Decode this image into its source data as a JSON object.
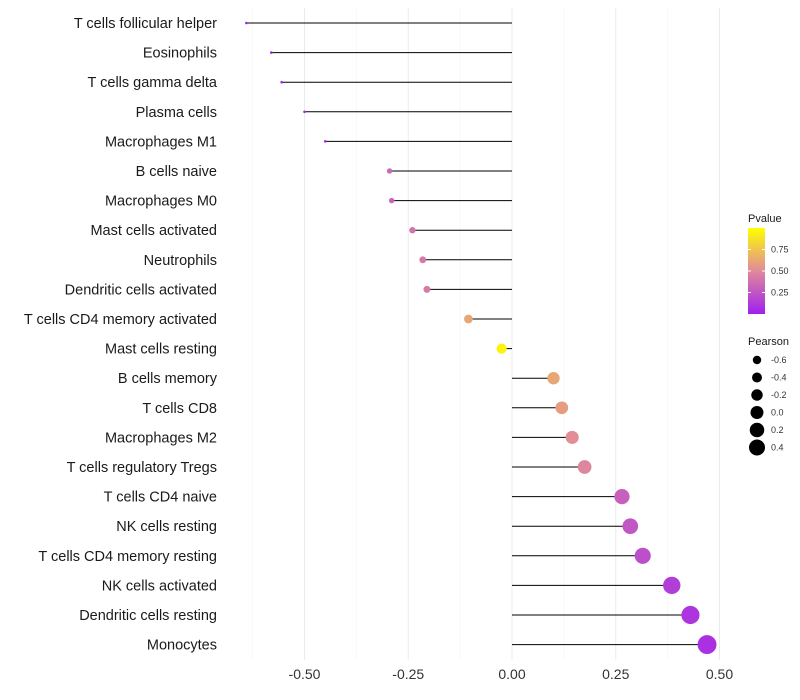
{
  "chart_data": {
    "type": "lollipop",
    "categories": [
      "T cells follicular helper",
      "Eosinophils",
      "T cells gamma delta",
      "Plasma cells",
      "Macrophages M1",
      "B cells naive",
      "Macrophages M0",
      "Mast cells activated",
      "Neutrophils",
      "Dendritic cells activated",
      "T cells CD4 memory activated",
      "Mast cells resting",
      "B cells memory",
      "T cells CD8",
      "Macrophages M2",
      "T cells regulatory  Tregs ",
      "T cells CD4 naive",
      "NK cells resting",
      "T cells CD4 memory resting",
      "NK cells activated",
      "Dendritic cells resting",
      "Monocytes"
    ],
    "values": [
      -0.64,
      -0.58,
      -0.555,
      -0.5,
      -0.45,
      -0.295,
      -0.29,
      -0.24,
      -0.215,
      -0.205,
      -0.105,
      -0.025,
      0.1,
      0.12,
      0.145,
      0.175,
      0.265,
      0.285,
      0.315,
      0.385,
      0.43,
      0.47
    ],
    "pvalues": [
      0.01,
      0.02,
      0.03,
      0.04,
      0.06,
      0.35,
      0.32,
      0.4,
      0.42,
      0.43,
      0.62,
      0.95,
      0.62,
      0.58,
      0.52,
      0.48,
      0.3,
      0.26,
      0.22,
      0.14,
      0.1,
      0.08
    ],
    "xlim": [
      -0.65,
      0.52
    ],
    "xticks": [
      -0.5,
      -0.25,
      0.0,
      0.25,
      0.5
    ],
    "xtick_labels": [
      "-0.50",
      "-0.25",
      "0.00",
      "0.25",
      "0.50"
    ],
    "title": "",
    "xlabel": "",
    "ylabel": "",
    "grid": true,
    "color_legend": {
      "title": "Pvalue",
      "ticks": [
        0.25,
        0.5,
        0.75
      ],
      "tick_labels": [
        "0.25",
        "0.50",
        "0.75"
      ],
      "range": [
        0.0,
        1.0
      ],
      "low_color": "#a020f0",
      "mid_color": "#e08a9a",
      "high_color": "#ffff00"
    },
    "size_legend": {
      "title": "Pearson",
      "values": [
        -0.6,
        -0.4,
        -0.2,
        0.0,
        0.2,
        0.4
      ],
      "labels": [
        "-0.6",
        "-0.4",
        "-0.2",
        "0.0",
        "0.2",
        "0.4"
      ]
    },
    "stem_color": "#000000",
    "gridline_color": "#ebebeb"
  }
}
